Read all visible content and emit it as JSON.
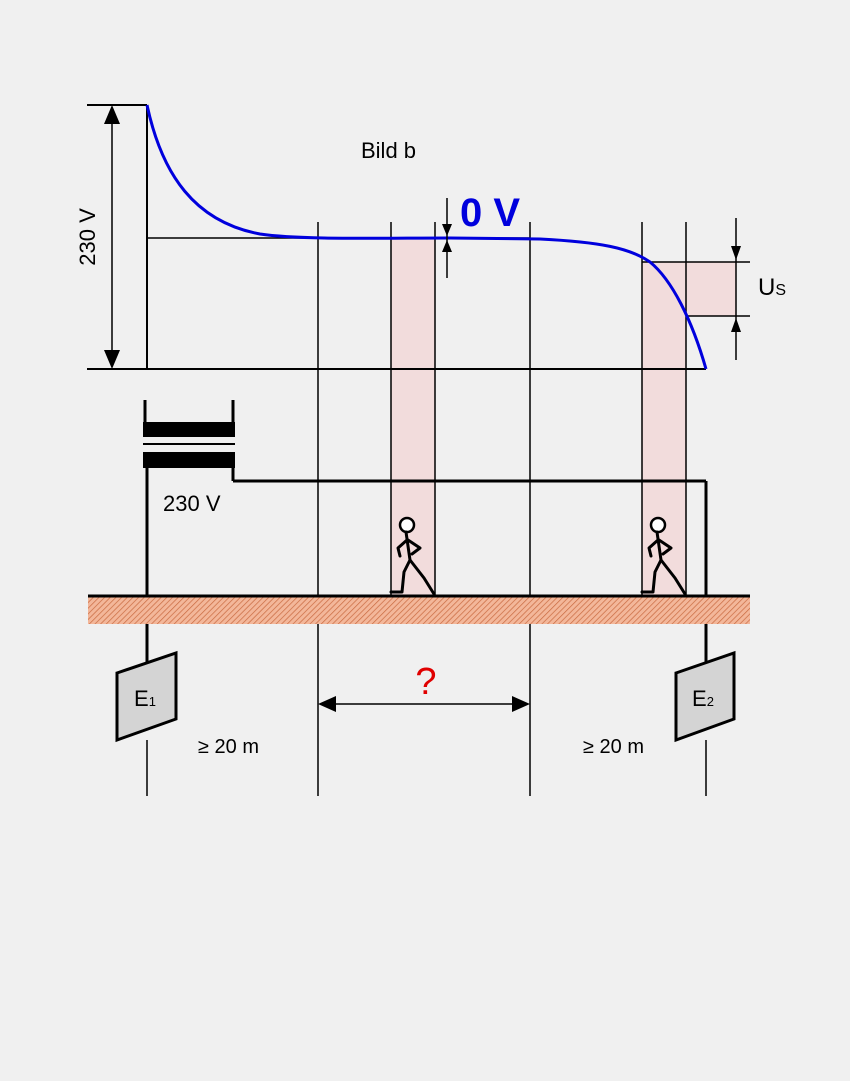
{
  "diagram": {
    "title": "Bild b",
    "voltage_scale_label": "230 V",
    "zero_voltage_label": "0 V",
    "step_voltage_label_main": "U",
    "step_voltage_label_sub": "S",
    "transformer_label": "230 V",
    "earth_electrode_1_main": "E",
    "earth_electrode_1_sub": "1",
    "earth_electrode_2_main": "E",
    "earth_electrode_2_sub": "2",
    "distance_left": "≥ 20 m",
    "distance_right": "≥ 20 m",
    "unknown_distance": "?",
    "colors": {
      "curve": "#0000dd",
      "zero_label": "#0000dd",
      "question": "#e00000",
      "shaded": "#f2dcdc",
      "ground": "#e8a080",
      "line": "#000000"
    }
  }
}
